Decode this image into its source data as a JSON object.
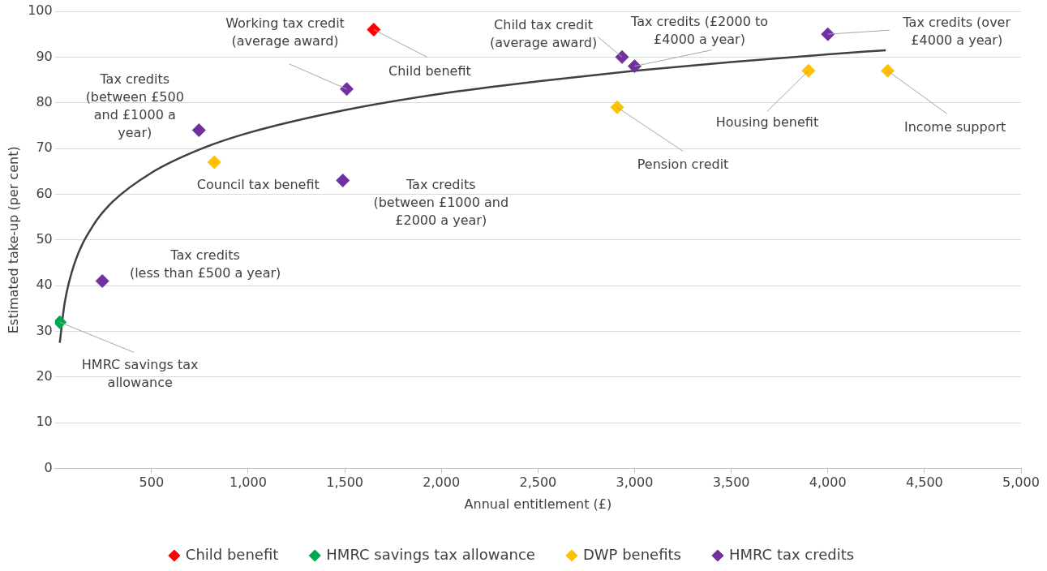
{
  "chart_data": {
    "type": "scatter",
    "xlabel": "Annual entitlement (£)",
    "ylabel": "Estimated take-up (per cent)",
    "xlim": [
      0,
      5000
    ],
    "xticks": [
      500,
      {
        "value": 1000,
        "label": "1,000"
      },
      {
        "value": 1500,
        "label": "1,500"
      },
      {
        "value": 2000,
        "label": "2,000"
      },
      {
        "value": 2500,
        "label": "2,500"
      },
      {
        "value": 3000,
        "label": "3,000"
      },
      {
        "value": 3500,
        "label": "3,500"
      },
      {
        "value": 4000,
        "label": "4,000"
      },
      {
        "value": 4500,
        "label": "4,500"
      },
      {
        "value": 5000,
        "label": "5,000"
      }
    ],
    "ylim": [
      0,
      100
    ],
    "yticks": [
      0,
      10,
      20,
      30,
      40,
      50,
      60,
      70,
      80,
      90,
      100
    ],
    "grid": "y",
    "legend": "bottom",
    "marker": "diamond",
    "series": [
      {
        "name": "Child benefit",
        "color": "#ff0000",
        "x": [
          1650
        ],
        "values": [
          96
        ]
      },
      {
        "name": "HMRC savings tax allowance",
        "color": "#00a650",
        "x": [
          25
        ],
        "values": [
          32
        ]
      },
      {
        "name": "DWP benefits",
        "color": "#ffc000",
        "x": [
          825,
          2910,
          3900,
          4310
        ],
        "values": [
          67,
          79,
          87,
          87
        ]
      },
      {
        "name": "HMRC tax credits",
        "color": "#7030a0",
        "x": [
          245,
          745,
          1490,
          1510,
          2935,
          3000,
          4000
        ],
        "values": [
          41,
          74,
          63,
          83,
          90,
          88,
          95
        ]
      },
      {
        "type": "line",
        "marker": "none",
        "color": "#404040",
        "x": [
          25,
          50,
          100,
          200,
          300,
          500,
          750,
          1000,
          1500,
          2000,
          2500,
          3000,
          3500,
          4000,
          4300
        ],
        "values": [
          27.5,
          36.1,
          44.7,
          53.3,
          58.4,
          64.7,
          69.8,
          73.4,
          78.4,
          82.0,
          84.7,
          87.0,
          88.9,
          90.6,
          91.5
        ]
      }
    ],
    "annotations": [
      {
        "text": "Working tax credit\n(average award)",
        "x": 1510,
        "y": 83
      },
      {
        "text": "Child benefit",
        "x": 1650,
        "y": 96
      },
      {
        "text": "Child tax credit\n(average award)",
        "x": 2935,
        "y": 90
      },
      {
        "text": "Tax credits (£2000 to\n£4000 a year)",
        "x": 3000,
        "y": 88
      },
      {
        "text": "Tax credits (over\n£4000 a year)",
        "x": 4000,
        "y": 95
      },
      {
        "text": "Tax credits\n(between £500\nand £1000 a\nyear)",
        "x": 745,
        "y": 74
      },
      {
        "text": "Council tax benefit",
        "x": 825,
        "y": 67
      },
      {
        "text": "Tax credits\n(between £1000 and\n£2000 a year)",
        "x": 1490,
        "y": 63
      },
      {
        "text": "Tax credits\n(less than £500 a year)",
        "x": 245,
        "y": 41
      },
      {
        "text": "HMRC savings tax\nallowance",
        "x": 25,
        "y": 32
      },
      {
        "text": "Pension credit",
        "x": 2910,
        "y": 79
      },
      {
        "text": "Housing benefit",
        "x": 3900,
        "y": 87
      },
      {
        "text": "Income support",
        "x": 4310,
        "y": 87
      }
    ]
  }
}
